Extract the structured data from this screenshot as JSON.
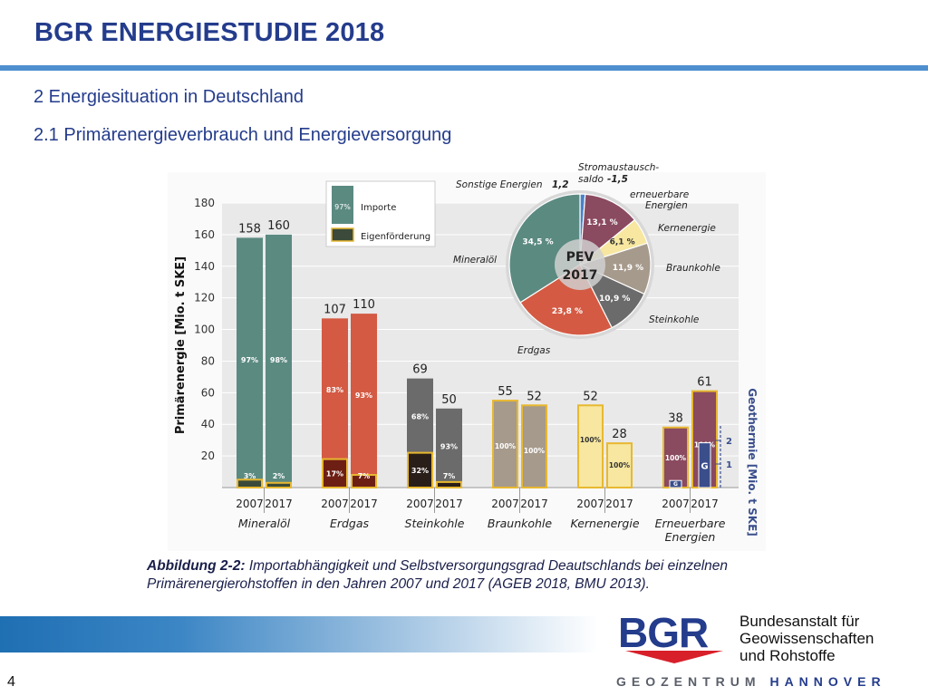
{
  "header": {
    "title": "BGR ENERGIESTUDIE 2018",
    "section": "2 Energiesituation in Deutschland",
    "subsection": "2.1 Primärenergieverbrauch und Energieversorgung"
  },
  "caption": {
    "label": "Abbildung 2-2:",
    "text": "Importabhängigkeit und Selbstversorgungsgrad Deautschlands bei einzelnen Primärenergierohstoffen in den Jahren 2007 und 2017 (AGEB 2018, BMU 2013)."
  },
  "footer": {
    "page_number": "4",
    "logo_text": "BGR",
    "institution": [
      "Bundesanstalt für",
      "Geowissenschaften",
      "und Rohstoffe"
    ],
    "geozentrum_a": "GEOZENTRUM",
    "geozentrum_b": "HANNOVER"
  },
  "chart_data": [
    {
      "type": "bar",
      "ylabel": "Primärenergie [Mio. t SKE]",
      "y2label": "Geothermie [Mio. t SKE]",
      "ylim": [
        0,
        180
      ],
      "yticks": [
        20,
        40,
        60,
        80,
        100,
        120,
        140,
        160,
        180
      ],
      "y2ticks": [
        1,
        2
      ],
      "years": [
        "2007",
        "2017"
      ],
      "legend": {
        "placement": "top-left",
        "import_label": "Importe",
        "import_sample": "97%",
        "domestic_label": "Eigenförderung"
      },
      "groups": [
        {
          "name": "Mineralöl",
          "color": "#5b8a81",
          "domestic_color": "#3b4a3a",
          "bars": [
            {
              "year": "2007",
              "total": 158,
              "import_pct": "97%",
              "domestic_pct": "3%",
              "domestic": 5
            },
            {
              "year": "2017",
              "total": 160,
              "import_pct": "98%",
              "domestic_pct": "2%",
              "domestic": 3
            }
          ]
        },
        {
          "name": "Erdgas",
          "color": "#d45a43",
          "domestic_color": "#6e1f14",
          "bars": [
            {
              "year": "2007",
              "total": 107,
              "import_pct": "83%",
              "domestic_pct": "17%",
              "domestic": 18
            },
            {
              "year": "2017",
              "total": 110,
              "import_pct": "93%",
              "domestic_pct": "7%",
              "domestic": 8
            }
          ]
        },
        {
          "name": "Steinkohle",
          "color": "#6b6b6b",
          "domestic_color": "#2a1e18",
          "bars": [
            {
              "year": "2007",
              "total": 69,
              "import_pct": "68%",
              "domestic_pct": "32%",
              "domestic": 22
            },
            {
              "year": "2017",
              "total": 50,
              "import_pct": "93%",
              "domestic_pct": "7%",
              "domestic": 3.5
            }
          ]
        },
        {
          "name": "Braunkohle",
          "color": "#a69a8c",
          "domestic_color": "#a69a8c",
          "bars": [
            {
              "year": "2007",
              "total": 55,
              "domestic_pct": "100%",
              "domestic": 55
            },
            {
              "year": "2017",
              "total": 52,
              "domestic_pct": "100%",
              "domestic": 52
            }
          ]
        },
        {
          "name": "Kernenergie",
          "color": "#f7e7a0",
          "domestic_color": "#f7e7a0",
          "bars": [
            {
              "year": "2007",
              "total": 52,
              "domestic_pct": "100%",
              "domestic": 52
            },
            {
              "year": "2017",
              "total": 28,
              "domestic_pct": "100%",
              "domestic": 28
            }
          ]
        },
        {
          "name": "Erneuerbare Energien",
          "color": "#8a4a60",
          "domestic_color": "#8a4a60",
          "bars": [
            {
              "year": "2007",
              "total": 38,
              "domestic_pct": "100%",
              "domestic": 38,
              "geothermal_label": "G",
              "geothermal": 0.3
            },
            {
              "year": "2017",
              "total": 61,
              "domestic_pct": "100%",
              "domestic": 61,
              "geothermal_label": "G",
              "geothermal": 1.9
            }
          ]
        }
      ]
    },
    {
      "type": "pie",
      "center_label": [
        "PEV",
        "2017"
      ],
      "slices": [
        {
          "name": "Mineralöl",
          "label": "34,5 %",
          "value": 34.5,
          "color": "#5b8a81"
        },
        {
          "name": "Erdgas",
          "label": "23,8 %",
          "value": 23.8,
          "color": "#d45a43"
        },
        {
          "name": "Steinkohle",
          "label": "10,9 %",
          "value": 10.9,
          "color": "#6b6b6b"
        },
        {
          "name": "Braunkohle",
          "label": "11,9 %",
          "value": 11.9,
          "color": "#a69a8c"
        },
        {
          "name": "Kernenergie",
          "label": "6,1 %",
          "value": 6.1,
          "color": "#f7e7a0"
        },
        {
          "name": "erneuerbare Energien",
          "label": "13,1 %",
          "value": 13.1,
          "color": "#8a4a60"
        },
        {
          "name": "Sonstige Energien",
          "label": "1,2",
          "value": 1.2,
          "color": "#4a82c8"
        }
      ],
      "outer_labels": {
        "sonstige": "Sonstige Energien",
        "sonstige_value": "1,2",
        "strom_a": "Stromaustausch-",
        "strom_b": "saldo",
        "strom_value": "-1,5",
        "erneuerbare_a": "erneuerbare",
        "erneuerbare_b": "Energien",
        "kern": "Kernenergie",
        "braun": "Braunkohle",
        "stein": "Steinkohle",
        "gas": "Erdgas",
        "oel": "Mineralöl"
      }
    }
  ]
}
